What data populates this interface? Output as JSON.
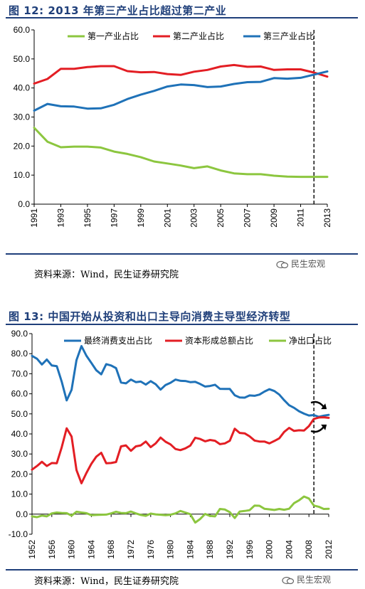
{
  "figures": [
    {
      "title": "图 12:  2013 年第三产业占比超过第二产业",
      "source": "资料来源：Wind，民生证券研究院",
      "watermark": "民生宏观"
    },
    {
      "title": "图 13:  中国开始从投资和出口主导向消费主导型经济转型",
      "source": "资料来源：Wind，民生证券研究院",
      "watermark": "民生宏观"
    }
  ],
  "chart_data": [
    {
      "type": "line",
      "x": [
        1991,
        1992,
        1993,
        1994,
        1995,
        1996,
        1997,
        1998,
        1999,
        2000,
        2001,
        2002,
        2003,
        2004,
        2005,
        2006,
        2007,
        2008,
        2009,
        2010,
        2011,
        2012,
        2013
      ],
      "xticks": [
        1991,
        1993,
        1995,
        1997,
        1999,
        2001,
        2003,
        2005,
        2007,
        2009,
        2011,
        2013
      ],
      "ylim": [
        0,
        60
      ],
      "yticks": [
        "0.0",
        "10.0",
        "20.0",
        "30.0",
        "40.0",
        "50.0",
        "60.0"
      ],
      "series": [
        {
          "name": "第一产业占比",
          "color": "#8cc63f",
          "values": [
            26.3,
            21.5,
            19.6,
            19.8,
            19.8,
            19.5,
            18.1,
            17.3,
            16.2,
            14.7,
            14.0,
            13.3,
            12.4,
            13.0,
            11.6,
            10.6,
            10.3,
            10.3,
            9.8,
            9.5,
            9.4,
            9.4,
            9.4
          ]
        },
        {
          "name": "第二产业占比",
          "color": "#e31e24",
          "values": [
            41.5,
            43.1,
            46.6,
            46.6,
            47.2,
            47.5,
            47.5,
            45.8,
            45.4,
            45.5,
            44.8,
            44.5,
            45.6,
            46.2,
            47.4,
            47.9,
            47.3,
            47.4,
            46.2,
            46.4,
            46.4,
            45.3,
            43.9
          ]
        },
        {
          "name": "第三产业占比",
          "color": "#1f72b8",
          "values": [
            32.2,
            34.5,
            33.7,
            33.6,
            32.9,
            33.0,
            34.2,
            36.2,
            37.7,
            39.0,
            40.5,
            41.2,
            41.0,
            40.3,
            40.5,
            41.4,
            42.0,
            42.1,
            43.4,
            43.2,
            43.5,
            44.6,
            45.7
          ]
        }
      ],
      "marker_x": 2012,
      "legend": "top"
    },
    {
      "type": "line",
      "x": [
        1952,
        1953,
        1954,
        1955,
        1956,
        1957,
        1958,
        1959,
        1960,
        1961,
        1962,
        1963,
        1964,
        1965,
        1966,
        1967,
        1968,
        1969,
        1970,
        1971,
        1972,
        1973,
        1974,
        1975,
        1976,
        1977,
        1978,
        1979,
        1980,
        1981,
        1982,
        1983,
        1984,
        1985,
        1986,
        1987,
        1988,
        1989,
        1990,
        1991,
        1992,
        1993,
        1994,
        1995,
        1996,
        1997,
        1998,
        1999,
        2000,
        2001,
        2002,
        2003,
        2004,
        2005,
        2006,
        2007,
        2008,
        2009,
        2010,
        2011,
        2012
      ],
      "xticks": [
        1952,
        1956,
        1960,
        1964,
        1968,
        1972,
        1976,
        1980,
        1984,
        1988,
        1992,
        1996,
        2000,
        2004,
        2008,
        2012
      ],
      "ylim": [
        -10,
        90
      ],
      "yticks": [
        "-10.0",
        "0.0",
        "10.0",
        "20.0",
        "30.0",
        "40.0",
        "50.0",
        "60.0",
        "70.0",
        "80.0",
        "90.0"
      ],
      "series": [
        {
          "name": "最终消费支出占比",
          "color": "#1f72b8",
          "values": [
            78.9,
            77.5,
            74.6,
            77.1,
            74.1,
            73.8,
            66.1,
            56.7,
            62.0,
            76.8,
            83.8,
            79.0,
            75.4,
            71.7,
            69.7,
            74.8,
            74.1,
            72.8,
            65.6,
            65.2,
            67.1,
            65.8,
            66.1,
            64.6,
            66.3,
            64.8,
            62.1,
            64.4,
            65.5,
            67.1,
            66.5,
            66.4,
            65.8,
            66.0,
            64.9,
            63.6,
            63.9,
            64.5,
            62.5,
            62.4,
            62.4,
            59.3,
            58.2,
            58.1,
            59.2,
            59.0,
            59.6,
            61.1,
            62.3,
            61.4,
            59.6,
            56.8,
            54.3,
            53.0,
            51.3,
            50.1,
            49.2,
            49.4,
            48.5,
            49.1,
            49.5
          ]
        },
        {
          "name": "资本形成总额占比",
          "color": "#e31e24",
          "values": [
            22.2,
            24.0,
            26.1,
            24.0,
            25.5,
            25.4,
            33.3,
            42.8,
            38.7,
            22.0,
            15.4,
            20.5,
            25.1,
            28.7,
            30.6,
            25.4,
            25.5,
            26.0,
            33.8,
            34.3,
            31.6,
            33.8,
            34.3,
            36.2,
            33.4,
            35.3,
            38.2,
            36.1,
            34.8,
            32.5,
            31.9,
            32.8,
            34.2,
            38.1,
            37.5,
            36.3,
            37.0,
            36.6,
            34.9,
            35.3,
            36.6,
            42.6,
            40.5,
            40.3,
            38.8,
            36.7,
            36.2,
            36.2,
            35.3,
            36.5,
            37.8,
            41.0,
            43.0,
            41.5,
            41.8,
            41.7,
            43.9,
            47.5,
            48.2,
            48.3,
            48.0
          ]
        },
        {
          "name": "净出口占比",
          "color": "#8cc63f",
          "values": [
            -1.1,
            -1.5,
            -0.7,
            -1.1,
            0.4,
            0.8,
            0.6,
            0.5,
            -0.7,
            1.2,
            0.8,
            0.5,
            -0.5,
            -0.4,
            -0.3,
            -0.2,
            0.4,
            1.2,
            0.6,
            0.5,
            1.3,
            0.4,
            -0.4,
            -0.8,
            0.3,
            -0.1,
            -0.3,
            -0.5,
            -0.3,
            0.4,
            1.6,
            0.8,
            0.0,
            -4.2,
            -2.4,
            0.1,
            -0.9,
            -1.1,
            2.6,
            2.3,
            1.0,
            -1.9,
            1.3,
            1.6,
            2.0,
            4.3,
            4.2,
            2.7,
            2.4,
            2.1,
            2.6,
            2.2,
            2.7,
            5.5,
            6.9,
            8.8,
            7.8,
            4.3,
            3.7,
            2.6,
            2.7
          ]
        }
      ],
      "marker_x": 2009,
      "legend": "top"
    }
  ]
}
